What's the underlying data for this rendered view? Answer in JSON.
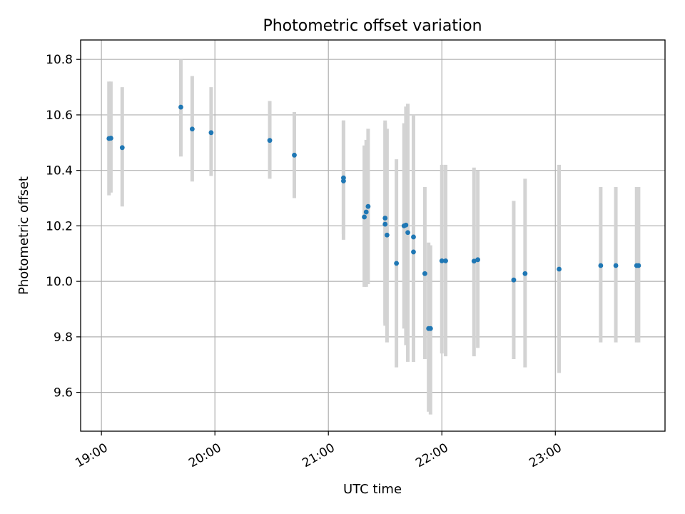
{
  "chart_data": {
    "type": "scatter",
    "title": "Photometric offset variation",
    "xlabel": "UTC time",
    "ylabel": "Photometric offset",
    "x_ticks": [
      "19:00",
      "20:00",
      "21:00",
      "22:00",
      "23:00"
    ],
    "y_ticks": [
      "9.6",
      "9.8",
      "10.0",
      "10.2",
      "10.4",
      "10.6",
      "10.8"
    ],
    "xlim": [
      "18:49",
      "23:58"
    ],
    "ylim": [
      9.46,
      10.87
    ],
    "grid": true,
    "legend": "none",
    "colors": {
      "point": "#1f77b4",
      "errorbar": "#d3d3d3"
    },
    "series": [
      {
        "points": [
          {
            "x": "19:04",
            "y": 10.515,
            "lo": 10.31,
            "hi": 10.72
          },
          {
            "x": "19:05",
            "y": 10.516,
            "lo": 10.32,
            "hi": 10.72
          },
          {
            "x": "19:11",
            "y": 10.482,
            "lo": 10.27,
            "hi": 10.7
          },
          {
            "x": "19:42",
            "y": 10.628,
            "lo": 10.45,
            "hi": 10.8
          },
          {
            "x": "19:48",
            "y": 10.549,
            "lo": 10.36,
            "hi": 10.74
          },
          {
            "x": "19:58",
            "y": 10.536,
            "lo": 10.38,
            "hi": 10.7
          },
          {
            "x": "20:29",
            "y": 10.508,
            "lo": 10.37,
            "hi": 10.65
          },
          {
            "x": "20:42",
            "y": 10.455,
            "lo": 10.3,
            "hi": 10.61
          },
          {
            "x": "21:08",
            "y": 10.373,
            "lo": 10.17,
            "hi": 10.58
          },
          {
            "x": "21:08",
            "y": 10.362,
            "lo": 10.15,
            "hi": 10.58
          },
          {
            "x": "21:19",
            "y": 10.232,
            "lo": 9.98,
            "hi": 10.49
          },
          {
            "x": "21:20",
            "y": 10.25,
            "lo": 9.98,
            "hi": 10.51
          },
          {
            "x": "21:21",
            "y": 10.27,
            "lo": 9.99,
            "hi": 10.55
          },
          {
            "x": "21:30",
            "y": 10.228,
            "lo": 9.85,
            "hi": 10.58
          },
          {
            "x": "21:30",
            "y": 10.206,
            "lo": 9.84,
            "hi": 10.57
          },
          {
            "x": "21:31",
            "y": 10.167,
            "lo": 9.78,
            "hi": 10.55
          },
          {
            "x": "21:36",
            "y": 10.065,
            "lo": 9.69,
            "hi": 10.44
          },
          {
            "x": "21:40",
            "y": 10.2,
            "lo": 9.83,
            "hi": 10.57
          },
          {
            "x": "21:41",
            "y": 10.203,
            "lo": 9.77,
            "hi": 10.63
          },
          {
            "x": "21:42",
            "y": 10.176,
            "lo": 9.71,
            "hi": 10.64
          },
          {
            "x": "21:45",
            "y": 10.16,
            "lo": 9.71,
            "hi": 10.6
          },
          {
            "x": "21:45",
            "y": 10.106,
            "lo": 9.71,
            "hi": 10.5
          },
          {
            "x": "21:51",
            "y": 10.028,
            "lo": 9.72,
            "hi": 10.34
          },
          {
            "x": "21:53",
            "y": 9.83,
            "lo": 9.53,
            "hi": 10.14
          },
          {
            "x": "21:54",
            "y": 9.83,
            "lo": 9.52,
            "hi": 10.13
          },
          {
            "x": "22:00",
            "y": 10.074,
            "lo": 9.74,
            "hi": 10.42
          },
          {
            "x": "22:02",
            "y": 10.074,
            "lo": 9.73,
            "hi": 10.42
          },
          {
            "x": "22:17",
            "y": 10.073,
            "lo": 9.73,
            "hi": 10.41
          },
          {
            "x": "22:19",
            "y": 10.078,
            "lo": 9.76,
            "hi": 10.4
          },
          {
            "x": "22:38",
            "y": 10.005,
            "lo": 9.72,
            "hi": 10.29
          },
          {
            "x": "22:44",
            "y": 10.028,
            "lo": 9.69,
            "hi": 10.37
          },
          {
            "x": "23:02",
            "y": 10.044,
            "lo": 9.67,
            "hi": 10.42
          },
          {
            "x": "23:24",
            "y": 10.057,
            "lo": 9.78,
            "hi": 10.34
          },
          {
            "x": "23:32",
            "y": 10.057,
            "lo": 9.78,
            "hi": 10.34
          },
          {
            "x": "23:43",
            "y": 10.057,
            "lo": 9.78,
            "hi": 10.34
          },
          {
            "x": "23:44",
            "y": 10.057,
            "lo": 9.78,
            "hi": 10.34
          }
        ]
      }
    ]
  }
}
